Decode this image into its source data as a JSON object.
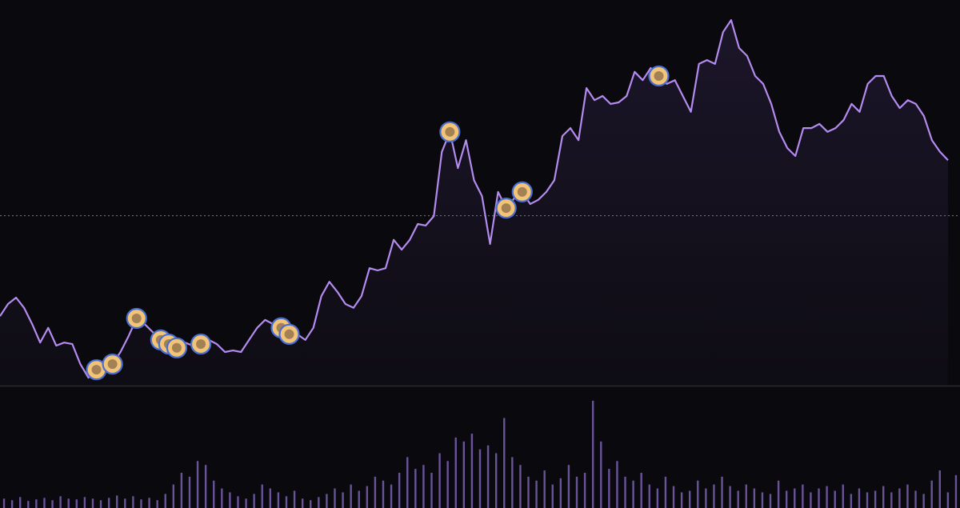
{
  "chart_data": {
    "type": "line",
    "color": "#b48cf0",
    "ylim": [
      0,
      100
    ],
    "reference_value": 45,
    "values": [
      18.4,
      21.6,
      23.3,
      20.6,
      16.3,
      11.4,
      15.3,
      10.6,
      11.4,
      11.0,
      5.7,
      2.1,
      4.2,
      5.1,
      5.7,
      8.9,
      13.1,
      17.8,
      16.3,
      14.2,
      12.1,
      11.0,
      10.0,
      11.4,
      10.6,
      11.0,
      12.1,
      11.0,
      8.9,
      9.3,
      8.9,
      12.1,
      15.3,
      17.4,
      16.3,
      15.3,
      13.6,
      13.6,
      12.1,
      15.3,
      23.7,
      27.5,
      24.8,
      21.6,
      20.6,
      23.7,
      31.1,
      30.5,
      31.1,
      38.6,
      36.0,
      38.6,
      42.8,
      42.4,
      44.9,
      61.9,
      67.2,
      57.6,
      65.0,
      54.4,
      50.2,
      37.5,
      51.3,
      47.0,
      49.6,
      51.3,
      48.1,
      49.2,
      51.3,
      54.4,
      66.1,
      68.2,
      65.0,
      78.8,
      75.6,
      76.7,
      74.6,
      75.0,
      76.7,
      83.1,
      80.9,
      84.1,
      82.0,
      79.9,
      80.9,
      76.7,
      72.5,
      85.2,
      86.2,
      85.2,
      93.6,
      96.8,
      89.4,
      87.3,
      82.0,
      79.9,
      74.6,
      67.2,
      62.9,
      60.8,
      68.2,
      68.2,
      69.3,
      67.2,
      68.2,
      70.3,
      74.6,
      72.5,
      79.9,
      82.0,
      82.0,
      76.7,
      73.5,
      75.6,
      74.6,
      71.4,
      65.0,
      61.9,
      59.7
    ],
    "event_points": [
      12,
      14,
      17,
      20,
      21,
      22,
      25,
      35,
      36,
      56,
      63,
      65,
      82
    ],
    "volume": {
      "color": "#8a6cc8",
      "ylim": [
        0,
        140
      ],
      "values": [
        12,
        10,
        14,
        9,
        11,
        13,
        10,
        15,
        12,
        11,
        14,
        12,
        10,
        13,
        16,
        12,
        15,
        11,
        13,
        10,
        18,
        30,
        45,
        40,
        60,
        55,
        35,
        25,
        20,
        15,
        12,
        18,
        30,
        25,
        20,
        15,
        22,
        12,
        10,
        14,
        18,
        25,
        20,
        30,
        22,
        28,
        40,
        35,
        30,
        45,
        65,
        50,
        55,
        45,
        70,
        60,
        90,
        85,
        95,
        75,
        80,
        70,
        115,
        65,
        55,
        40,
        35,
        48,
        30,
        38,
        55,
        40,
        45,
        137,
        85,
        50,
        60,
        40,
        35,
        45,
        30,
        25,
        40,
        28,
        20,
        22,
        35,
        25,
        30,
        40,
        28,
        22,
        30,
        25,
        20,
        18,
        35,
        22,
        25,
        30,
        20,
        25,
        28,
        22,
        30,
        18,
        25,
        20,
        22,
        28,
        20,
        25,
        30,
        22,
        18,
        35,
        48,
        20,
        42
      ]
    }
  }
}
